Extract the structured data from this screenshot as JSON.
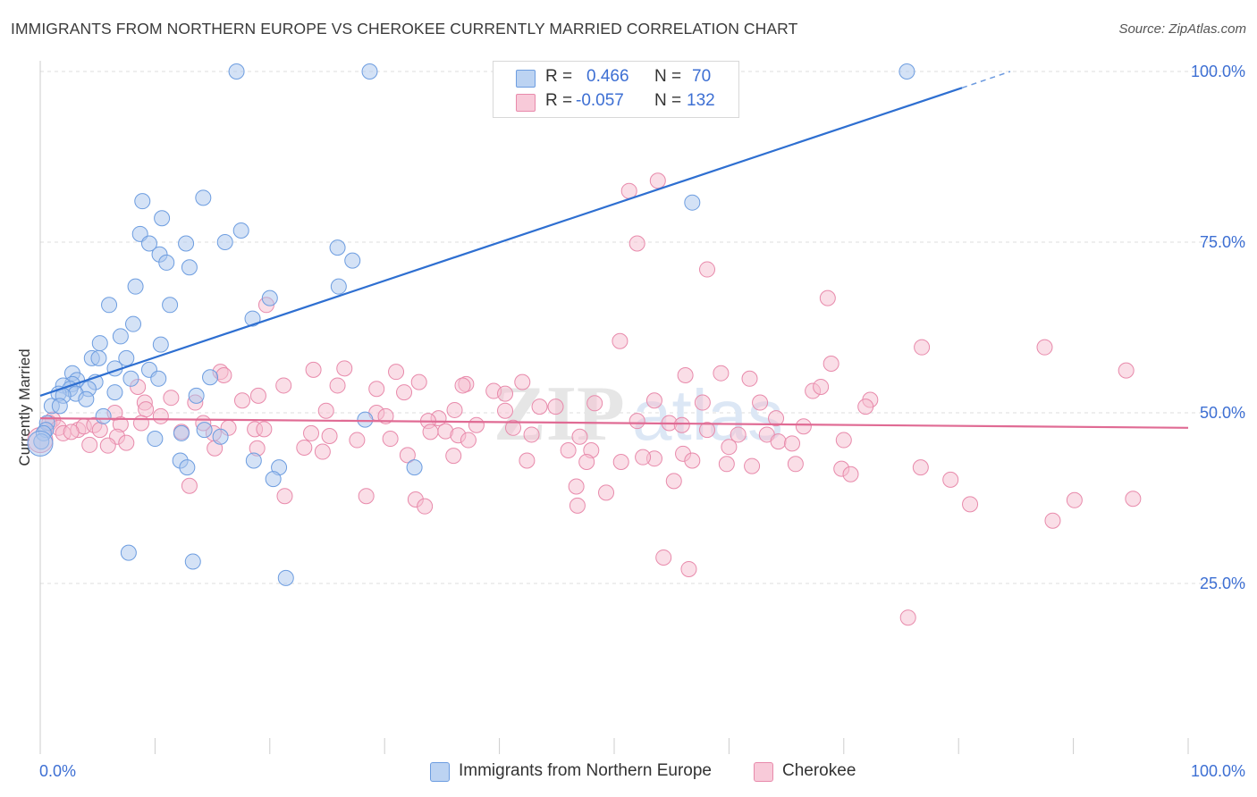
{
  "title": "IMMIGRANTS FROM NORTHERN EUROPE VS CHEROKEE CURRENTLY MARRIED CORRELATION CHART",
  "source": "Source: ZipAtlas.com",
  "watermark": {
    "zip": "ZIP",
    "atlas": "atlas"
  },
  "stats": {
    "series1": {
      "r_label": "R =",
      "r_value": "0.466",
      "n_label": "N =",
      "n_value": "70"
    },
    "series2": {
      "r_label": "R =",
      "r_value": "-0.057",
      "n_label": "N =",
      "n_value": "132"
    }
  },
  "legend": {
    "series1": "Immigrants from Northern Europe",
    "series2": "Cherokee"
  },
  "colors": {
    "blue_fill": "#a9c6ee",
    "blue_stroke": "#6d9de0",
    "blue_line": "#2e6fd1",
    "pink_fill": "#f5bdd0",
    "pink_stroke": "#e88aab",
    "pink_line": "#e06b94",
    "tick_text": "#3d6fd3",
    "grid": "#dcdcdc"
  },
  "chart_data": {
    "type": "scatter",
    "title": "IMMIGRANTS FROM NORTHERN EUROPE VS CHEROKEE CURRENTLY MARRIED CORRELATION CHART",
    "xlabel": "",
    "ylabel": "Currently Married",
    "xlim": [
      0,
      100
    ],
    "ylim": [
      0,
      105
    ],
    "x_tick_labels": [
      "0.0%",
      "100.0%"
    ],
    "y_ticks": [
      25,
      50,
      75,
      100
    ],
    "y_tick_labels": [
      "25.0%",
      "50.0%",
      "75.0%",
      "100.0%"
    ],
    "grid": true,
    "legend_position": "bottom",
    "series": [
      {
        "name": "Immigrants from Northern Europe",
        "R": 0.466,
        "N": 70,
        "trend": {
          "x": [
            0,
            80.3,
            84.5
          ],
          "y": [
            52.5,
            97.6,
            100.0
          ],
          "dashed_from_x": 80.3
        },
        "points": [
          [
            17.1,
            100
          ],
          [
            28.7,
            100
          ],
          [
            75.5,
            100
          ],
          [
            14.2,
            81.5
          ],
          [
            8.9,
            81.0
          ],
          [
            56.8,
            80.8
          ],
          [
            10.6,
            78.5
          ],
          [
            17.5,
            76.7
          ],
          [
            8.7,
            76.2
          ],
          [
            9.5,
            74.8
          ],
          [
            12.7,
            74.8
          ],
          [
            16.1,
            75.0
          ],
          [
            25.9,
            74.2
          ],
          [
            10.4,
            73.2
          ],
          [
            27.2,
            72.3
          ],
          [
            11.0,
            72.0
          ],
          [
            13.0,
            71.3
          ],
          [
            8.3,
            68.5
          ],
          [
            26.0,
            68.5
          ],
          [
            20.0,
            66.8
          ],
          [
            11.3,
            65.8
          ],
          [
            6.0,
            65.8
          ],
          [
            18.5,
            63.8
          ],
          [
            8.1,
            63.0
          ],
          [
            7.0,
            61.2
          ],
          [
            5.2,
            60.2
          ],
          [
            10.5,
            60.0
          ],
          [
            4.5,
            58.0
          ],
          [
            5.1,
            58.0
          ],
          [
            7.5,
            58.0
          ],
          [
            6.5,
            56.5
          ],
          [
            9.5,
            56.3
          ],
          [
            2.8,
            55.8
          ],
          [
            14.8,
            55.2
          ],
          [
            3.2,
            54.8
          ],
          [
            4.8,
            54.5
          ],
          [
            2.8,
            54.2
          ],
          [
            7.9,
            55.0
          ],
          [
            10.3,
            55.0
          ],
          [
            2.0,
            54.0
          ],
          [
            2.6,
            53.5
          ],
          [
            4.2,
            53.5
          ],
          [
            3.1,
            52.8
          ],
          [
            6.5,
            53.0
          ],
          [
            1.6,
            52.8
          ],
          [
            2.0,
            52.5
          ],
          [
            13.6,
            52.5
          ],
          [
            4.0,
            52.0
          ],
          [
            1.0,
            51.0
          ],
          [
            1.7,
            51.0
          ],
          [
            5.5,
            49.5
          ],
          [
            28.3,
            49.0
          ],
          [
            0.6,
            48.5
          ],
          [
            0.5,
            47.5
          ],
          [
            14.3,
            47.5
          ],
          [
            0.3,
            47.0
          ],
          [
            12.3,
            47.0
          ],
          [
            15.7,
            46.5
          ],
          [
            10.0,
            46.2
          ],
          [
            0.1,
            45.8
          ],
          [
            12.2,
            43.0
          ],
          [
            18.6,
            43.0
          ],
          [
            12.8,
            42.0
          ],
          [
            20.8,
            42.0
          ],
          [
            32.6,
            42.0
          ],
          [
            20.3,
            40.3
          ],
          [
            7.7,
            29.5
          ],
          [
            13.3,
            28.2
          ],
          [
            21.4,
            25.8
          ],
          [
            0.0,
            45.5
          ]
        ]
      },
      {
        "name": "Cherokee",
        "R": -0.057,
        "N": 132,
        "trend": {
          "x": [
            0,
            100
          ],
          "y": [
            49.2,
            47.8
          ]
        },
        "points": [
          [
            53.8,
            84.0
          ],
          [
            51.3,
            82.5
          ],
          [
            52.0,
            74.8
          ],
          [
            58.1,
            71.0
          ],
          [
            68.6,
            66.8
          ],
          [
            19.7,
            65.8
          ],
          [
            50.5,
            60.5
          ],
          [
            76.8,
            59.6
          ],
          [
            87.5,
            59.6
          ],
          [
            68.9,
            57.2
          ],
          [
            59.3,
            55.8
          ],
          [
            94.6,
            56.2
          ],
          [
            26.5,
            56.5
          ],
          [
            15.7,
            56.0
          ],
          [
            23.8,
            56.3
          ],
          [
            31.0,
            56.0
          ],
          [
            16.0,
            55.5
          ],
          [
            56.2,
            55.5
          ],
          [
            61.8,
            55.0
          ],
          [
            33.0,
            54.5
          ],
          [
            42.0,
            54.5
          ],
          [
            37.1,
            54.2
          ],
          [
            25.9,
            54.0
          ],
          [
            29.3,
            53.5
          ],
          [
            36.8,
            54.0
          ],
          [
            21.2,
            54.0
          ],
          [
            8.5,
            53.8
          ],
          [
            67.3,
            53.2
          ],
          [
            68.0,
            53.8
          ],
          [
            31.7,
            53.0
          ],
          [
            39.5,
            53.2
          ],
          [
            19.0,
            52.5
          ],
          [
            11.4,
            52.2
          ],
          [
            40.5,
            52.8
          ],
          [
            13.5,
            51.5
          ],
          [
            9.1,
            51.5
          ],
          [
            17.6,
            51.8
          ],
          [
            57.7,
            51.5
          ],
          [
            72.3,
            51.9
          ],
          [
            53.5,
            51.8
          ],
          [
            48.3,
            51.4
          ],
          [
            62.7,
            51.5
          ],
          [
            71.9,
            50.9
          ],
          [
            43.5,
            50.9
          ],
          [
            44.9,
            50.9
          ],
          [
            36.1,
            50.4
          ],
          [
            40.5,
            50.3
          ],
          [
            24.9,
            50.3
          ],
          [
            29.3,
            50.0
          ],
          [
            9.2,
            50.5
          ],
          [
            6.5,
            50.0
          ],
          [
            10.5,
            49.5
          ],
          [
            30.1,
            49.5
          ],
          [
            34.7,
            49.2
          ],
          [
            64.1,
            49.2
          ],
          [
            52.0,
            48.8
          ],
          [
            33.8,
            48.8
          ],
          [
            54.8,
            48.5
          ],
          [
            66.5,
            48.0
          ],
          [
            55.9,
            48.2
          ],
          [
            58.1,
            47.5
          ],
          [
            35.3,
            47.3
          ],
          [
            38.0,
            48.2
          ],
          [
            41.2,
            47.8
          ],
          [
            42.8,
            46.8
          ],
          [
            60.8,
            46.8
          ],
          [
            63.3,
            46.8
          ],
          [
            47.0,
            46.5
          ],
          [
            3.3,
            47.5
          ],
          [
            3.8,
            48.0
          ],
          [
            4.7,
            48.2
          ],
          [
            7.0,
            48.3
          ],
          [
            8.8,
            48.5
          ],
          [
            1.1,
            49.0
          ],
          [
            0.8,
            48.5
          ],
          [
            1.6,
            47.8
          ],
          [
            2.0,
            47.0
          ],
          [
            2.7,
            47.2
          ],
          [
            5.2,
            47.5
          ],
          [
            6.7,
            46.5
          ],
          [
            12.3,
            47.2
          ],
          [
            15.1,
            47.0
          ],
          [
            16.4,
            47.8
          ],
          [
            18.7,
            47.6
          ],
          [
            19.5,
            47.6
          ],
          [
            14.2,
            48.5
          ],
          [
            23.6,
            47.0
          ],
          [
            27.6,
            46.0
          ],
          [
            30.5,
            46.2
          ],
          [
            34.0,
            47.2
          ],
          [
            25.2,
            46.6
          ],
          [
            36.4,
            46.7
          ],
          [
            37.3,
            46.0
          ],
          [
            46.0,
            44.5
          ],
          [
            48.0,
            44.5
          ],
          [
            53.5,
            43.3
          ],
          [
            56.0,
            44.0
          ],
          [
            60.0,
            45.0
          ],
          [
            64.3,
            45.8
          ],
          [
            65.5,
            45.5
          ],
          [
            70.0,
            46.0
          ],
          [
            5.9,
            45.2
          ],
          [
            4.3,
            45.3
          ],
          [
            7.5,
            45.6
          ],
          [
            18.9,
            44.8
          ],
          [
            24.6,
            44.3
          ],
          [
            23.0,
            44.9
          ],
          [
            15.2,
            44.8
          ],
          [
            32.0,
            43.8
          ],
          [
            36.0,
            43.7
          ],
          [
            42.4,
            43.0
          ],
          [
            47.6,
            42.8
          ],
          [
            50.6,
            42.8
          ],
          [
            52.5,
            43.5
          ],
          [
            56.8,
            43.0
          ],
          [
            59.8,
            42.5
          ],
          [
            62.0,
            42.2
          ],
          [
            65.8,
            42.5
          ],
          [
            69.8,
            41.8
          ],
          [
            70.6,
            41.0
          ],
          [
            76.7,
            42.0
          ],
          [
            79.3,
            40.2
          ],
          [
            55.2,
            40.0
          ],
          [
            46.7,
            39.2
          ],
          [
            13.0,
            39.3
          ],
          [
            49.3,
            38.3
          ],
          [
            21.3,
            37.8
          ],
          [
            28.4,
            37.8
          ],
          [
            46.8,
            36.4
          ],
          [
            81.0,
            36.6
          ],
          [
            90.1,
            37.2
          ],
          [
            95.2,
            37.4
          ],
          [
            88.2,
            34.2
          ],
          [
            54.3,
            28.8
          ],
          [
            56.5,
            27.1
          ],
          [
            75.6,
            20.0
          ],
          [
            32.7,
            37.3
          ],
          [
            33.5,
            36.3
          ],
          [
            0.0,
            46.0
          ]
        ]
      }
    ]
  }
}
